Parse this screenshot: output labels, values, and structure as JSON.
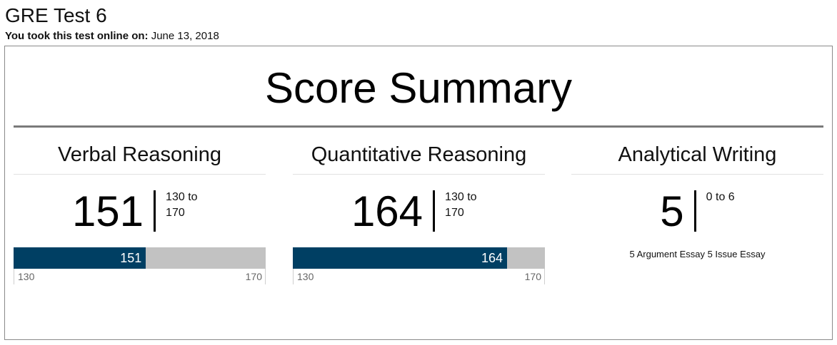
{
  "header": {
    "title": "GRE Test 6",
    "taken_label": "You took this test online on:",
    "taken_date": "June 13, 2018"
  },
  "summary": {
    "title": "Score Summary",
    "sections": [
      {
        "name": "Verbal Reasoning",
        "score": "151",
        "range_text": "130 to 170",
        "bar": {
          "min": 130,
          "max": 170,
          "value": 151,
          "min_label": "130",
          "max_label": "170",
          "value_label": "151"
        }
      },
      {
        "name": "Quantitative Reasoning",
        "score": "164",
        "range_text": "130 to 170",
        "bar": {
          "min": 130,
          "max": 170,
          "value": 164,
          "min_label": "130",
          "max_label": "170",
          "value_label": "164"
        }
      },
      {
        "name": "Analytical Writing",
        "score": "5",
        "range_text": "0 to 6",
        "detail": "5 Argument Essay 5 Issue Essay"
      }
    ]
  },
  "colors": {
    "bar_fill": "#003f63",
    "bar_track": "#c2c2c2",
    "rule": "#7a7a7a"
  }
}
